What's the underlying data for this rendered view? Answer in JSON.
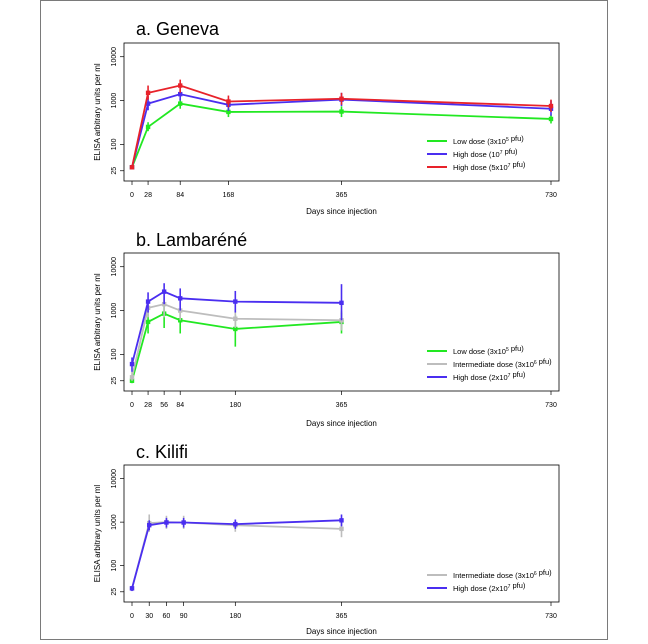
{
  "chart_data": [
    {
      "type": "line",
      "title": "a. Geneva",
      "xlabel": "Days since injection",
      "ylabel": "ELISA arbitrary units per ml",
      "y_scale": "log",
      "x_ticks": [
        "0",
        "28",
        "84",
        "168",
        "365",
        "730"
      ],
      "y_ticks": [
        "25",
        "100",
        "1000",
        "10000"
      ],
      "xlim": [
        0,
        730
      ],
      "ylim": [
        20,
        15000
      ],
      "legend_position": "bottom-right",
      "series": [
        {
          "name": "Low dose (3x10<sup>5</sup> pfu)",
          "color": "#22e822",
          "x": [
            0,
            28,
            84,
            168,
            365,
            730
          ],
          "y": [
            30,
            250,
            850,
            550,
            560,
            380
          ],
          "err_low": [
            28,
            200,
            650,
            420,
            420,
            300
          ],
          "err_high": [
            33,
            320,
            1100,
            720,
            740,
            480
          ]
        },
        {
          "name": "High dose (10<sup>7</sup> pfu)",
          "color": "#4a2ef0",
          "x": [
            0,
            28,
            84,
            168,
            365,
            730
          ],
          "y": [
            30,
            850,
            1400,
            800,
            1050,
            650
          ],
          "err_low": [
            28,
            600,
            1000,
            580,
            750,
            450
          ],
          "err_high": [
            33,
            1250,
            2000,
            1100,
            1500,
            1000
          ]
        },
        {
          "name": "High dose (5x10<sup>7</sup> pfu)",
          "color": "#e8222a",
          "x": [
            0,
            28,
            84,
            168,
            365,
            730
          ],
          "y": [
            30,
            1500,
            2200,
            950,
            1100,
            750
          ],
          "err_low": [
            28,
            1050,
            1500,
            700,
            800,
            550
          ],
          "err_high": [
            33,
            2200,
            3000,
            1300,
            1500,
            1050
          ]
        }
      ]
    },
    {
      "type": "line",
      "title": "b. Lambaréné",
      "xlabel": "Days since injection",
      "ylabel": "ELISA arbitrary units per ml",
      "y_scale": "log",
      "x_ticks": [
        "0",
        "28",
        "56",
        "84",
        "180",
        "365",
        "730"
      ],
      "y_ticks": [
        "25",
        "100",
        "1000",
        "10000"
      ],
      "xlim": [
        0,
        730
      ],
      "ylim": [
        20,
        15000
      ],
      "legend_position": "bottom-right",
      "series": [
        {
          "name": "Low dose (3x10<sup>5</sup> pfu)",
          "color": "#22e822",
          "x": [
            0,
            28,
            56,
            84,
            180,
            365
          ],
          "y": [
            25,
            550,
            850,
            600,
            380,
            550
          ],
          "err_low": [
            22,
            300,
            400,
            300,
            150,
            300
          ],
          "err_high": [
            30,
            900,
            1500,
            1100,
            800,
            900
          ]
        },
        {
          "name": "Intermediate dose (3x10<sup>6</sup> pfu)",
          "color": "#bdbdbd",
          "x": [
            0,
            28,
            56,
            84,
            180,
            365
          ],
          "y": [
            30,
            1150,
            1400,
            1000,
            650,
            600
          ],
          "err_low": [
            25,
            700,
            700,
            600,
            400,
            350
          ],
          "err_high": [
            40,
            1800,
            2500,
            1700,
            1000,
            1000
          ]
        },
        {
          "name": "High dose (2x10<sup>7</sup> pfu)",
          "color": "#4a2ef0",
          "x": [
            0,
            28,
            56,
            84,
            180,
            365
          ],
          "y": [
            60,
            1600,
            2700,
            1900,
            1600,
            1500
          ],
          "err_low": [
            40,
            900,
            1400,
            1000,
            900,
            600
          ],
          "err_high": [
            85,
            2600,
            4200,
            3200,
            2800,
            4000
          ]
        }
      ]
    },
    {
      "type": "line",
      "title": "c. Kilifi",
      "xlabel": "Days since injection",
      "ylabel": "ELISA arbitrary units per ml",
      "y_scale": "log",
      "x_ticks": [
        "0",
        "30",
        "60",
        "90",
        "180",
        "365",
        "730"
      ],
      "y_ticks": [
        "25",
        "100",
        "1000",
        "10000"
      ],
      "xlim": [
        0,
        730
      ],
      "ylim": [
        20,
        15000
      ],
      "legend_position": "bottom-right",
      "series": [
        {
          "name": "Intermediate dose (3x10<sup>6</sup> pfu)",
          "color": "#bdbdbd",
          "x": [
            0,
            30,
            60,
            90,
            180,
            365
          ],
          "y": [
            30,
            950,
            1000,
            980,
            850,
            700
          ],
          "err_low": [
            26,
            600,
            700,
            700,
            600,
            450
          ],
          "err_high": [
            34,
            1500,
            1400,
            1400,
            1150,
            1000
          ]
        },
        {
          "name": "High dose (2x10<sup>7</sup> pfu)",
          "color": "#4a2ef0",
          "x": [
            0,
            30,
            60,
            90,
            180,
            365
          ],
          "y": [
            30,
            850,
            980,
            980,
            900,
            1100
          ],
          "err_low": [
            26,
            650,
            750,
            750,
            700,
            800
          ],
          "err_high": [
            34,
            1100,
            1250,
            1250,
            1150,
            1500
          ]
        }
      ]
    }
  ]
}
